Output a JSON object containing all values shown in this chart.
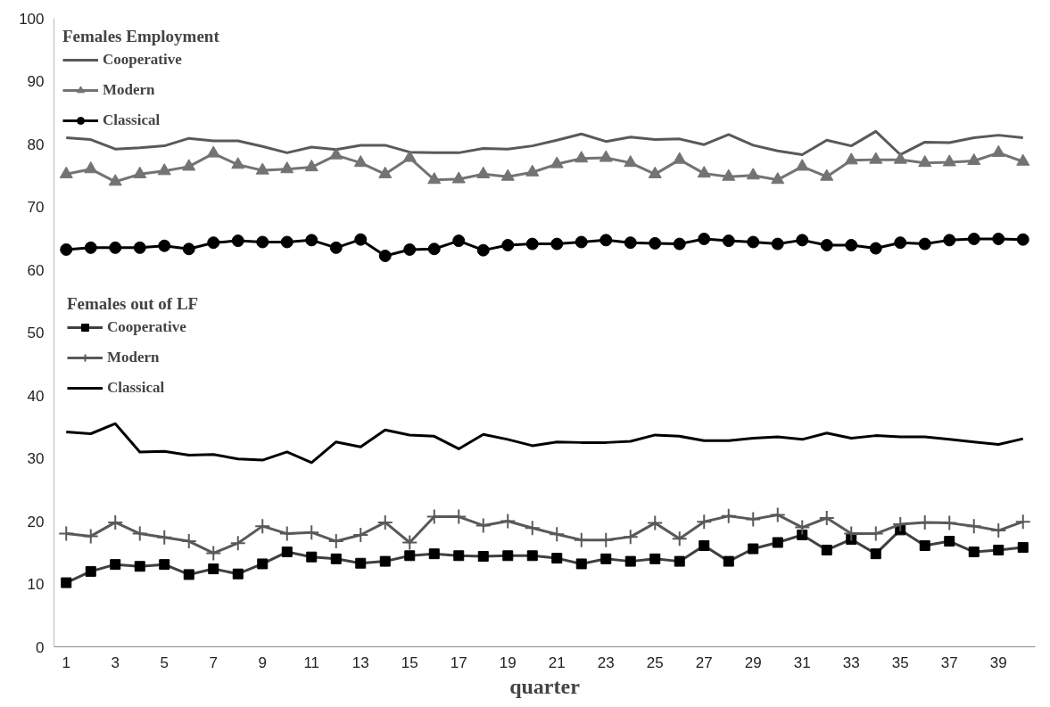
{
  "chart_data": {
    "type": "line",
    "xlabel": "quarter",
    "x": [
      1,
      2,
      3,
      4,
      5,
      6,
      7,
      8,
      9,
      10,
      11,
      12,
      13,
      14,
      15,
      16,
      17,
      18,
      19,
      20,
      21,
      22,
      23,
      24,
      25,
      26,
      27,
      28,
      29,
      30,
      31,
      32,
      33,
      34,
      35,
      36,
      37,
      38,
      39,
      40
    ],
    "xlim": [
      0.5,
      40.5
    ],
    "xticks": [
      1,
      3,
      5,
      7,
      9,
      11,
      13,
      15,
      17,
      19,
      21,
      23,
      25,
      27,
      29,
      31,
      33,
      35,
      37,
      39
    ],
    "ylim": [
      0,
      100
    ],
    "yticks": [
      0,
      10,
      20,
      30,
      40,
      50,
      60,
      70,
      80,
      90,
      100
    ],
    "grid": false,
    "legend": "top left",
    "annotations": [
      "Females Employment",
      "Females out of LF"
    ],
    "series": [
      {
        "name": "Cooperative",
        "color": "#595959",
        "marker": "none",
        "values": [
          81,
          80.7,
          79.2,
          79.4,
          79.7,
          80.9,
          80.5,
          80.5,
          79.6,
          78.6,
          79.5,
          79.1,
          79.8,
          79.8,
          78.7,
          78.6,
          78.6,
          79.3,
          79.2,
          79.7,
          80.6,
          81.6,
          80.4,
          81.1,
          80.7,
          80.8,
          79.9,
          81.5,
          79.8,
          78.9,
          78.3,
          80.6,
          79.7,
          82,
          78.3,
          80.3,
          80.2,
          81,
          81.4,
          81
        ]
      },
      {
        "name": "Modern",
        "color": "#737373",
        "marker": "triangle",
        "values": [
          75.2,
          76,
          74,
          75.2,
          75.7,
          76.4,
          78.5,
          76.7,
          75.8,
          76,
          76.3,
          78.2,
          77,
          75.2,
          77.8,
          74.3,
          74.4,
          75.2,
          74.8,
          75.5,
          76.8,
          77.7,
          77.8,
          77,
          75.2,
          77.5,
          75.3,
          74.8,
          75,
          74.3,
          76.4,
          74.8,
          77.4,
          77.5,
          77.5,
          77,
          77.1,
          77.3,
          78.6,
          77.2
        ]
      },
      {
        "name": "Classical",
        "color": "#000000",
        "marker": "circle",
        "values": [
          63.2,
          63.5,
          63.5,
          63.5,
          63.8,
          63.3,
          64.3,
          64.6,
          64.4,
          64.4,
          64.7,
          63.5,
          64.8,
          62.2,
          63.2,
          63.3,
          64.6,
          63.1,
          63.9,
          64.1,
          64.1,
          64.4,
          64.7,
          64.3,
          64.2,
          64.1,
          64.9,
          64.6,
          64.4,
          64.1,
          64.7,
          63.9,
          63.9,
          63.4,
          64.3,
          64.1,
          64.7,
          64.9,
          64.9,
          64.8
        ]
      },
      {
        "name": "Cooperative",
        "color": "#404040",
        "marker": "square",
        "values": [
          10.2,
          12,
          13.1,
          12.8,
          13.1,
          11.5,
          12.4,
          11.6,
          13.2,
          15.1,
          14.3,
          14,
          13.3,
          13.6,
          14.5,
          14.8,
          14.5,
          14.4,
          14.5,
          14.5,
          14.1,
          13.2,
          14,
          13.6,
          14,
          13.6,
          16.1,
          13.6,
          15.6,
          16.6,
          17.8,
          15.4,
          17.1,
          14.8,
          18.6,
          16.1,
          16.8,
          15.1,
          15.4,
          15.8
        ]
      },
      {
        "name": "Modern",
        "color": "#595959",
        "marker": "cross",
        "values": [
          18,
          17.6,
          19.8,
          18,
          17.4,
          16.8,
          14.9,
          16.5,
          19.2,
          18,
          18.2,
          16.8,
          17.8,
          19.8,
          16.6,
          20.7,
          20.7,
          19.3,
          20,
          18.9,
          17.9,
          17,
          17,
          17.5,
          19.7,
          17.2,
          19.9,
          20.8,
          20.3,
          21,
          19,
          20.5,
          18,
          18,
          19.5,
          19.8,
          19.7,
          19.2,
          18.5,
          19.9
        ]
      },
      {
        "name": "Classical",
        "color": "#000000",
        "marker": "none",
        "values": [
          34.2,
          33.9,
          35.5,
          31,
          31.1,
          30.5,
          30.6,
          29.9,
          29.7,
          31,
          29.3,
          32.6,
          31.8,
          34.5,
          33.7,
          33.5,
          31.5,
          33.8,
          33,
          32,
          32.6,
          32.5,
          32.5,
          32.7,
          33.7,
          33.5,
          32.8,
          32.8,
          33.2,
          33.4,
          33,
          34,
          33.2,
          33.6,
          33.4,
          33.4,
          33,
          32.6,
          32.2,
          33.1
        ]
      }
    ]
  }
}
